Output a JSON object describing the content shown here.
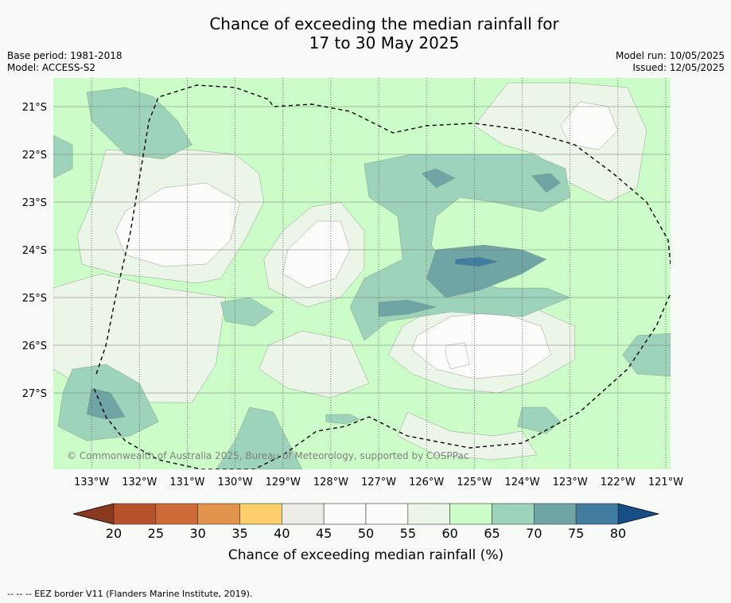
{
  "title_line1": "Chance of exceeding the median rainfall for",
  "title_line2": "17 to 30 May 2025",
  "base_period": "Base period: 1981-2018",
  "model": "Model: ACCESS-S2",
  "model_run": "Model run: 10/05/2025",
  "issued": "Issued: 12/05/2025",
  "copyright": "© Commonwealth of Australia 2025, Bureau of Meteorology, supported by COSPPac",
  "footnote": "--  --  -- EEZ border V11 (Flanders Marine Institute, 2019).",
  "chart_data": {
    "type": "heatmap",
    "x_ticks": [
      "133°W",
      "132°W",
      "131°W",
      "130°W",
      "129°W",
      "128°W",
      "127°W",
      "126°W",
      "125°W",
      "124°W",
      "123°W",
      "122°W",
      "121°W"
    ],
    "x_tick_values": [
      -133,
      -132,
      -131,
      -130,
      -129,
      -128,
      -127,
      -126,
      -125,
      -124,
      -123,
      -122,
      -121
    ],
    "y_ticks": [
      "21°S",
      "22°S",
      "23°S",
      "24°S",
      "25°S",
      "26°S",
      "27°S"
    ],
    "y_tick_values": [
      -21,
      -22,
      -23,
      -24,
      -25,
      -26,
      -27
    ],
    "xlim": [
      -133.8,
      -120.9
    ],
    "ylim": [
      -28.6,
      -20.4
    ],
    "grid": true,
    "colorbar": {
      "label": "Chance of exceeding median rainfall (%)",
      "levels": [
        20,
        25,
        30,
        35,
        40,
        45,
        50,
        55,
        60,
        65,
        70,
        75,
        80
      ],
      "colors": [
        "#b5512b",
        "#cf6b38",
        "#e2934c",
        "#fdcf6a",
        "#ecebe6",
        "#fafbf8",
        "#fcfcfa",
        "#ebf5e8",
        "#ccfcc8",
        "#9dd3bb",
        "#6fa5a5",
        "#417da0"
      ],
      "under_color": "#8a3a1f",
      "over_color": "#154f85"
    },
    "background_category": "60-65",
    "regions": [
      {
        "range": "55-60",
        "points": [
          [
            -132.7,
            -21.9
          ],
          [
            -132.0,
            -21.95
          ],
          [
            -131.0,
            -21.9
          ],
          [
            -130.0,
            -22.0
          ],
          [
            -129.5,
            -22.4
          ],
          [
            -129.4,
            -23.0
          ],
          [
            -129.8,
            -23.8
          ],
          [
            -130.3,
            -24.6
          ],
          [
            -130.8,
            -24.7
          ],
          [
            -131.6,
            -24.6
          ],
          [
            -132.5,
            -24.5
          ],
          [
            -133.2,
            -24.3
          ],
          [
            -133.3,
            -23.7
          ],
          [
            -133.0,
            -23.0
          ]
        ]
      },
      {
        "range": "50-55",
        "points": [
          [
            -132.3,
            -23.2
          ],
          [
            -131.5,
            -22.7
          ],
          [
            -130.6,
            -22.6
          ],
          [
            -129.9,
            -23.0
          ],
          [
            -130.1,
            -23.8
          ],
          [
            -130.6,
            -24.3
          ],
          [
            -131.5,
            -24.35
          ],
          [
            -132.3,
            -24.1
          ],
          [
            -132.5,
            -23.6
          ]
        ]
      },
      {
        "range": "55-60",
        "points": [
          [
            -129.0,
            -23.6
          ],
          [
            -128.4,
            -23.1
          ],
          [
            -127.8,
            -23.0
          ],
          [
            -127.3,
            -23.6
          ],
          [
            -127.3,
            -24.4
          ],
          [
            -127.8,
            -25.0
          ],
          [
            -128.5,
            -25.2
          ],
          [
            -129.3,
            -24.8
          ],
          [
            -129.4,
            -24.2
          ]
        ]
      },
      {
        "range": "50-55",
        "points": [
          [
            -128.9,
            -24.0
          ],
          [
            -128.3,
            -23.4
          ],
          [
            -127.8,
            -23.4
          ],
          [
            -127.6,
            -24.0
          ],
          [
            -127.9,
            -24.6
          ],
          [
            -128.5,
            -24.8
          ],
          [
            -129.0,
            -24.5
          ]
        ]
      },
      {
        "range": "55-60",
        "points": [
          [
            -126.5,
            -25.6
          ],
          [
            -125.7,
            -25.15
          ],
          [
            -124.7,
            -25.0
          ],
          [
            -123.8,
            -25.2
          ],
          [
            -122.9,
            -25.6
          ],
          [
            -122.9,
            -26.3
          ],
          [
            -123.6,
            -26.7
          ],
          [
            -124.5,
            -27.0
          ],
          [
            -125.5,
            -26.9
          ],
          [
            -126.3,
            -26.6
          ],
          [
            -126.8,
            -26.2
          ]
        ]
      },
      {
        "range": "50-55",
        "points": [
          [
            -126.2,
            -25.8
          ],
          [
            -125.5,
            -25.4
          ],
          [
            -124.5,
            -25.3
          ],
          [
            -123.6,
            -25.6
          ],
          [
            -123.4,
            -26.2
          ],
          [
            -124.0,
            -26.6
          ],
          [
            -125.0,
            -26.7
          ],
          [
            -125.8,
            -26.5
          ],
          [
            -126.3,
            -26.1
          ]
        ]
      },
      {
        "range": "55-60",
        "points": [
          [
            -125.0,
            -21.4
          ],
          [
            -124.3,
            -20.5
          ],
          [
            -123.0,
            -20.5
          ],
          [
            -121.8,
            -20.6
          ],
          [
            -121.4,
            -21.5
          ],
          [
            -121.6,
            -22.7
          ],
          [
            -122.2,
            -23.0
          ],
          [
            -123.0,
            -22.6
          ],
          [
            -123.7,
            -22.0
          ],
          [
            -124.4,
            -21.8
          ]
        ]
      },
      {
        "range": "50-55",
        "points": [
          [
            -123.2,
            -21.4
          ],
          [
            -122.8,
            -20.9
          ],
          [
            -122.2,
            -21.0
          ],
          [
            -122.0,
            -21.5
          ],
          [
            -122.4,
            -21.9
          ],
          [
            -123.0,
            -21.8
          ]
        ]
      },
      {
        "range": "55-60",
        "points": [
          [
            -126.4,
            -27.4
          ],
          [
            -125.5,
            -27.8
          ],
          [
            -124.6,
            -27.9
          ],
          [
            -124.0,
            -27.8
          ],
          [
            -123.7,
            -28.3
          ],
          [
            -124.6,
            -28.4
          ],
          [
            -125.8,
            -28.3
          ],
          [
            -126.6,
            -27.9
          ]
        ]
      },
      {
        "range": "55-60",
        "points": [
          [
            -133.8,
            -24.8
          ],
          [
            -132.8,
            -24.5
          ],
          [
            -131.5,
            -24.8
          ],
          [
            -130.2,
            -25.0
          ],
          [
            -130.4,
            -26.4
          ],
          [
            -130.9,
            -27.2
          ],
          [
            -132.0,
            -27.2
          ],
          [
            -133.3,
            -26.8
          ],
          [
            -133.8,
            -26.5
          ]
        ]
      },
      {
        "range": "55-60",
        "points": [
          [
            -129.3,
            -26.0
          ],
          [
            -128.6,
            -25.7
          ],
          [
            -127.6,
            -25.9
          ],
          [
            -127.2,
            -26.8
          ],
          [
            -128.0,
            -27.1
          ],
          [
            -128.9,
            -26.9
          ],
          [
            -129.5,
            -26.5
          ]
        ]
      },
      {
        "range": "65-70",
        "points": [
          [
            -132.3,
            -20.6
          ],
          [
            -131.7,
            -20.8
          ],
          [
            -131.2,
            -21.3
          ],
          [
            -130.9,
            -21.8
          ],
          [
            -131.5,
            -22.1
          ],
          [
            -132.3,
            -22.0
          ],
          [
            -133.0,
            -21.3
          ],
          [
            -133.1,
            -20.7
          ]
        ]
      },
      {
        "range": "65-70",
        "points": [
          [
            -133.8,
            -21.6
          ],
          [
            -133.4,
            -21.8
          ],
          [
            -133.4,
            -22.3
          ],
          [
            -133.8,
            -22.5
          ]
        ]
      },
      {
        "range": "65-70",
        "points": [
          [
            -127.3,
            -22.2
          ],
          [
            -126.3,
            -22.0
          ],
          [
            -125.0,
            -22.0
          ],
          [
            -123.8,
            -22.0
          ],
          [
            -123.1,
            -22.3
          ],
          [
            -123.0,
            -22.9
          ],
          [
            -123.6,
            -23.2
          ],
          [
            -124.6,
            -23.0
          ],
          [
            -125.3,
            -22.9
          ],
          [
            -125.8,
            -23.3
          ],
          [
            -125.9,
            -23.9
          ],
          [
            -125.5,
            -24.5
          ],
          [
            -124.5,
            -24.8
          ],
          [
            -123.5,
            -24.8
          ],
          [
            -123.0,
            -25.0
          ],
          [
            -124.0,
            -25.4
          ],
          [
            -125.5,
            -25.3
          ],
          [
            -126.8,
            -25.5
          ],
          [
            -127.3,
            -25.9
          ],
          [
            -127.6,
            -25.2
          ],
          [
            -127.3,
            -24.6
          ],
          [
            -126.5,
            -24.2
          ],
          [
            -126.6,
            -23.3
          ],
          [
            -127.2,
            -22.9
          ]
        ]
      },
      {
        "range": "65-70",
        "points": [
          [
            -130.3,
            -25.1
          ],
          [
            -129.7,
            -25.0
          ],
          [
            -129.2,
            -25.3
          ],
          [
            -129.6,
            -25.6
          ],
          [
            -130.2,
            -25.5
          ]
        ]
      },
      {
        "range": "65-70",
        "points": [
          [
            -133.4,
            -26.5
          ],
          [
            -132.7,
            -26.4
          ],
          [
            -132.0,
            -26.8
          ],
          [
            -131.6,
            -27.6
          ],
          [
            -132.2,
            -27.9
          ],
          [
            -133.1,
            -28.0
          ],
          [
            -133.7,
            -27.7
          ],
          [
            -133.6,
            -27.0
          ]
        ]
      },
      {
        "range": "65-70",
        "points": [
          [
            -129.7,
            -27.3
          ],
          [
            -129.2,
            -27.4
          ],
          [
            -128.9,
            -28.0
          ],
          [
            -128.6,
            -28.6
          ],
          [
            -130.4,
            -28.6
          ],
          [
            -130.0,
            -28.0
          ]
        ]
      },
      {
        "range": "65-70",
        "points": [
          [
            -124.0,
            -27.3
          ],
          [
            -123.5,
            -27.3
          ],
          [
            -123.2,
            -27.6
          ],
          [
            -123.5,
            -27.85
          ],
          [
            -124.1,
            -27.7
          ]
        ]
      },
      {
        "range": "65-70",
        "points": [
          [
            -121.6,
            -25.8
          ],
          [
            -120.9,
            -25.75
          ],
          [
            -120.9,
            -26.65
          ],
          [
            -121.6,
            -26.6
          ],
          [
            -121.9,
            -26.2
          ]
        ]
      },
      {
        "range": "65-70",
        "points": [
          [
            -128.1,
            -27.45
          ],
          [
            -127.6,
            -27.45
          ],
          [
            -127.4,
            -27.55
          ],
          [
            -127.7,
            -27.65
          ],
          [
            -128.1,
            -27.6
          ]
        ]
      },
      {
        "range": "70-75",
        "points": [
          [
            -126.1,
            -22.4
          ],
          [
            -125.8,
            -22.3
          ],
          [
            -125.4,
            -22.5
          ],
          [
            -125.8,
            -22.7
          ]
        ]
      },
      {
        "range": "70-75",
        "points": [
          [
            -123.8,
            -22.45
          ],
          [
            -123.4,
            -22.4
          ],
          [
            -123.2,
            -22.6
          ],
          [
            -123.5,
            -22.8
          ]
        ]
      },
      {
        "range": "70-75",
        "points": [
          [
            -124.8,
            -23.9
          ],
          [
            -124.0,
            -24.0
          ],
          [
            -123.5,
            -24.2
          ],
          [
            -124.0,
            -24.5
          ],
          [
            -124.9,
            -24.85
          ],
          [
            -125.6,
            -25.0
          ],
          [
            -126.0,
            -24.6
          ],
          [
            -125.8,
            -24.0
          ]
        ]
      },
      {
        "range": "70-75",
        "points": [
          [
            -127.0,
            -25.1
          ],
          [
            -126.4,
            -25.05
          ],
          [
            -125.8,
            -25.2
          ],
          [
            -126.4,
            -25.35
          ],
          [
            -127.0,
            -25.4
          ]
        ]
      },
      {
        "range": "70-75",
        "points": [
          [
            -133.0,
            -26.9
          ],
          [
            -132.6,
            -27.0
          ],
          [
            -132.3,
            -27.5
          ],
          [
            -132.7,
            -27.55
          ],
          [
            -133.1,
            -27.45
          ]
        ]
      },
      {
        "range": "75-80",
        "points": [
          [
            -125.4,
            -24.2
          ],
          [
            -124.9,
            -24.15
          ],
          [
            -124.5,
            -24.25
          ],
          [
            -124.9,
            -24.35
          ],
          [
            -125.4,
            -24.3
          ]
        ]
      },
      {
        "range": "50-55",
        "points": [
          [
            -125.6,
            -26.0
          ],
          [
            -125.2,
            -25.95
          ],
          [
            -125.1,
            -26.4
          ],
          [
            -125.5,
            -26.5
          ],
          [
            -125.6,
            -26.2
          ]
        ]
      }
    ],
    "eez_border": [
      [
        -132.9,
        -26.6
      ],
      [
        -132.7,
        -26.0
      ],
      [
        -132.5,
        -25.0
      ],
      [
        -132.2,
        -23.7
      ],
      [
        -132.0,
        -22.5
      ],
      [
        -131.8,
        -21.3
      ],
      [
        -131.6,
        -20.8
      ],
      [
        -130.8,
        -20.55
      ],
      [
        -130.0,
        -20.6
      ],
      [
        -129.3,
        -20.85
      ],
      [
        -129.2,
        -21.0
      ],
      [
        -128.4,
        -20.95
      ],
      [
        -127.6,
        -21.1
      ],
      [
        -126.7,
        -21.55
      ],
      [
        -126.0,
        -21.4
      ],
      [
        -125.0,
        -21.35
      ],
      [
        -123.9,
        -21.5
      ],
      [
        -122.9,
        -21.8
      ],
      [
        -122.1,
        -22.4
      ],
      [
        -121.4,
        -23.0
      ],
      [
        -120.95,
        -23.8
      ],
      [
        -120.85,
        -24.8
      ],
      [
        -121.2,
        -25.6
      ],
      [
        -121.8,
        -26.5
      ],
      [
        -122.8,
        -27.4
      ],
      [
        -124.0,
        -28.05
      ],
      [
        -125.1,
        -28.15
      ],
      [
        -126.4,
        -27.9
      ],
      [
        -127.2,
        -27.5
      ],
      [
        -127.7,
        -27.7
      ],
      [
        -128.3,
        -27.8
      ],
      [
        -129.0,
        -28.3
      ],
      [
        -129.6,
        -28.6
      ],
      [
        -130.7,
        -28.6
      ],
      [
        -131.6,
        -28.4
      ],
      [
        -132.3,
        -28.0
      ],
      [
        -132.7,
        -27.5
      ],
      [
        -132.95,
        -26.9
      ]
    ]
  }
}
